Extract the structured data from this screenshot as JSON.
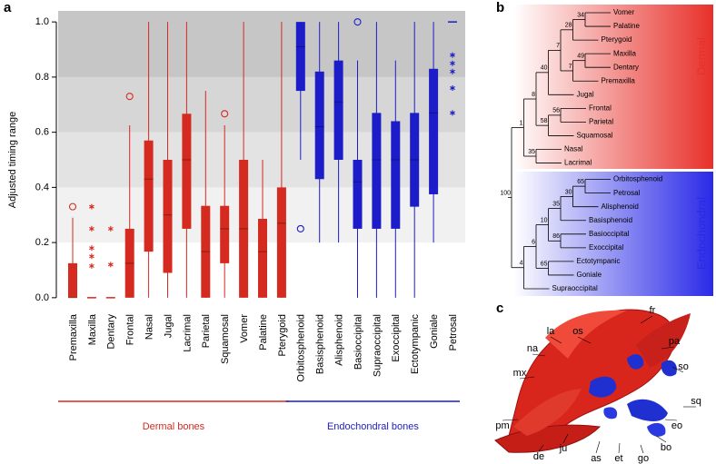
{
  "panel_labels": [
    "a",
    "b",
    "c"
  ],
  "chart_data": {
    "type": "box",
    "y_label": "Adjusted timing range",
    "ylim": [
      -0.04,
      1.04
    ],
    "yticks": [
      {
        "value": 0,
        "label": "0.0"
      },
      0.2,
      0.4,
      0.6,
      0.8,
      {
        "value": 1,
        "label": "1.0"
      }
    ],
    "bands": [
      {
        "from": 0.2,
        "to": 0.4,
        "color": "#f1f1f1"
      },
      {
        "from": 0.4,
        "to": 0.6,
        "color": "#e3e3e3"
      },
      {
        "from": 0.6,
        "to": 0.8,
        "color": "#d6d6d6"
      },
      {
        "from": 0.8,
        "to": 1.04,
        "color": "#c6c6c6"
      }
    ],
    "series": [
      {
        "name": "Dermal bones",
        "color": "#d42a20",
        "categories": [
          "Premaxilla",
          "Maxilla",
          "Dentary",
          "Frontal",
          "Nasal",
          "Jugal",
          "Lacrimal",
          "Parietal",
          "Squamosal",
          "Vomer",
          "Palatine",
          "Pterygoid"
        ],
        "min": [
          0,
          0,
          0,
          0,
          0,
          0,
          0,
          0,
          0,
          0,
          0,
          0
        ],
        "q1": [
          0,
          0,
          0,
          0,
          0.167,
          0.09,
          0.25,
          0,
          0.125,
          0,
          0,
          0
        ],
        "median": [
          0,
          0,
          0,
          0.125,
          0.43,
          0.3,
          0.5,
          0.167,
          0.25,
          0.25,
          0.167,
          0.27
        ],
        "q3": [
          0.125,
          0,
          0,
          0.25,
          0.57,
          0.5,
          0.667,
          0.333,
          0.333,
          0.5,
          0.286,
          0.4
        ],
        "max": [
          0.29,
          0,
          0,
          0.625,
          1,
          1,
          1,
          0.75,
          0.625,
          1,
          0.5,
          1
        ],
        "outliers": [
          [
            0.33
          ],
          [],
          [],
          [
            0.73
          ],
          [],
          [],
          [],
          [],
          [
            0.667
          ],
          [],
          [],
          []
        ],
        "extremes": [
          [],
          [
            0.33,
            0.25,
            0.18,
            0.15,
            0.115
          ],
          [
            0.25,
            0.12
          ],
          [],
          [],
          [],
          [],
          [],
          [],
          [],
          [],
          []
        ]
      },
      {
        "name": "Endochondral bones",
        "color": "#1c1cc8",
        "categories": [
          "Orbitosphenoid",
          "Basisphenoid",
          "Alisphenoid",
          "Basioccipital",
          "Supraoccipital",
          "Exoccipital",
          "Ectotympanic",
          "Goniale",
          "Petrosal"
        ],
        "min": [
          0.5,
          0.2,
          0.2,
          0,
          0,
          0,
          0,
          0.2,
          1
        ],
        "q1": [
          0.75,
          0.43,
          0.5,
          0.25,
          0.25,
          0.25,
          0.33,
          0.375,
          1
        ],
        "median": [
          0.91,
          0.62,
          0.71,
          0.42,
          0.5,
          0.5,
          0.5,
          0.67,
          1
        ],
        "q3": [
          1,
          0.82,
          0.86,
          0.5,
          0.67,
          0.64,
          0.67,
          0.83,
          1
        ],
        "max": [
          1,
          1,
          1,
          0.86,
          1,
          0.86,
          1,
          1,
          1
        ],
        "outliers": [
          [
            0.25
          ],
          [],
          [],
          [
            1
          ],
          [],
          [],
          [],
          [],
          []
        ],
        "extremes": [
          [],
          [],
          [],
          [],
          [],
          [],
          [],
          [],
          [
            0.88,
            0.85,
            0.82,
            0.76,
            0.67
          ]
        ]
      }
    ]
  },
  "tree": {
    "clades": [
      {
        "name": "Dermal",
        "color": "#e8302a"
      },
      {
        "name": "Endochondral",
        "color": "#2a2ae8"
      }
    ],
    "root": {
      "support": 100,
      "children": [
        {
          "support": 1,
          "children": [
            {
              "support": 8,
              "children": [
                {
                  "support": 40,
                  "children": [
                    {
                      "support": 7,
                      "children": [
                        {
                          "support": 28,
                          "children": [
                            {
                              "support": 34,
                              "children": [
                                {
                                  "name": "Vomer"
                                },
                                {
                                  "name": "Palatine"
                                }
                              ]
                            },
                            {
                              "name": "Pterygoid"
                            }
                          ]
                        },
                        {
                          "support": 7,
                          "children": [
                            {
                              "support": 49,
                              "children": [
                                {
                                  "name": "Maxilla"
                                },
                                {
                                  "name": "Dentary"
                                }
                              ]
                            },
                            {
                              "name": "Premaxilla"
                            }
                          ]
                        }
                      ]
                    },
                    {
                      "name": "Jugal"
                    }
                  ]
                },
                {
                  "support": 58,
                  "children": [
                    {
                      "support": 56,
                      "children": [
                        {
                          "name": "Frontal"
                        },
                        {
                          "name": "Parietal"
                        }
                      ]
                    },
                    {
                      "name": "Squamosal"
                    }
                  ]
                }
              ]
            },
            {
              "support": 35,
              "children": [
                {
                  "name": "Nasal"
                },
                {
                  "name": "Lacrimal"
                }
              ]
            }
          ]
        },
        {
          "support": 4,
          "children": [
            {
              "support": 6,
              "children": [
                {
                  "support": 10,
                  "children": [
                    {
                      "support": 35,
                      "children": [
                        {
                          "support": 30,
                          "children": [
                            {
                              "support": 65,
                              "children": [
                                {
                                  "name": "Orbitosphenoid"
                                },
                                {
                                  "name": "Petrosal"
                                }
                              ]
                            },
                            {
                              "name": "Alisphenoid"
                            }
                          ]
                        },
                        {
                          "name": "Basisphenoid"
                        }
                      ]
                    },
                    {
                      "support": 86,
                      "children": [
                        {
                          "name": "Basioccipital"
                        },
                        {
                          "name": "Exoccipital"
                        }
                      ]
                    }
                  ]
                },
                {
                  "support": 65,
                  "children": [
                    {
                      "name": "Ectotympanic"
                    },
                    {
                      "name": "Goniale"
                    }
                  ]
                }
              ]
            },
            {
              "name": "Supraoccipital"
            }
          ]
        }
      ]
    }
  },
  "skull": {
    "labels": [
      "fr",
      "pa",
      "os",
      "la",
      "na",
      "mx",
      "so",
      "sq",
      "eo",
      "bo",
      "go",
      "et",
      "as",
      "ju",
      "de",
      "pm"
    ]
  }
}
